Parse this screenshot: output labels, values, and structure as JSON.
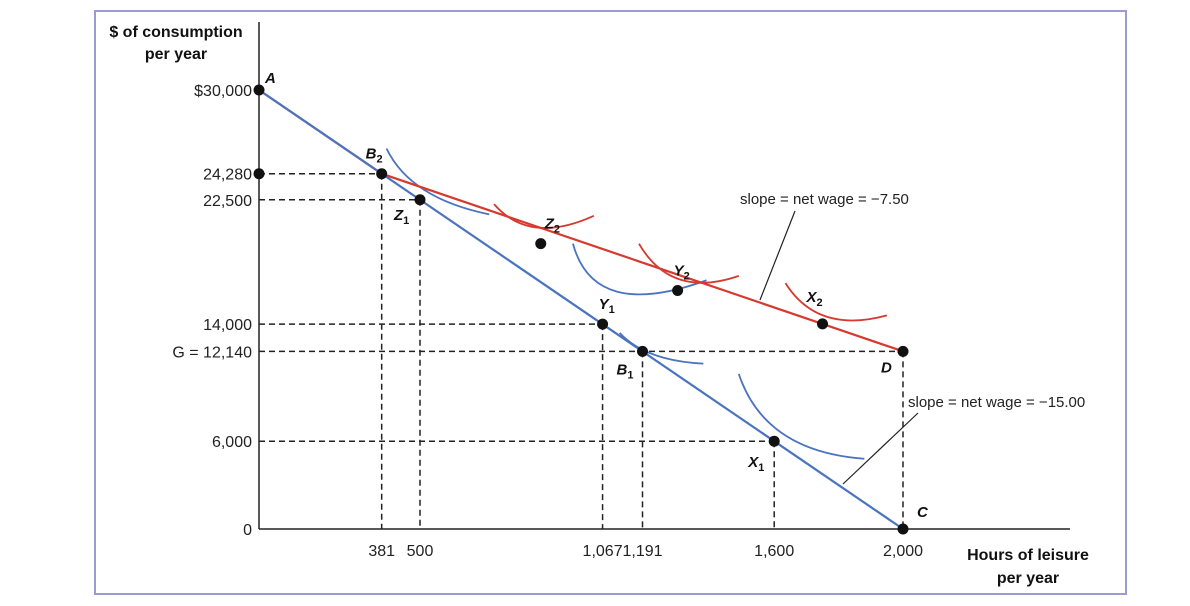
{
  "chart_data": {
    "type": "line",
    "title": "",
    "ylabel_line1": "$ of consumption",
    "ylabel_line2": "per year",
    "xlabel_line1": "Hours of leisure",
    "xlabel_line2": "per year",
    "xlim": [
      0,
      2000
    ],
    "ylim": [
      0,
      30000
    ],
    "x_ticks": [
      {
        "value": 381,
        "label": "381"
      },
      {
        "value": 500,
        "label": "500"
      },
      {
        "value": 1067,
        "label": "1,067"
      },
      {
        "value": 1191,
        "label": "1,191"
      },
      {
        "value": 1600,
        "label": "1,600"
      },
      {
        "value": 2000,
        "label": "2,000"
      }
    ],
    "y_ticks": [
      {
        "value": 30000,
        "label": "$30,000"
      },
      {
        "value": 24280,
        "label": "24,280"
      },
      {
        "value": 22500,
        "label": "22,500"
      },
      {
        "value": 14000,
        "label": "14,000"
      },
      {
        "value": 12140,
        "label": "G = 12,140"
      },
      {
        "value": 6000,
        "label": "6,000"
      },
      {
        "value": 0,
        "label": "0"
      }
    ],
    "series": [
      {
        "color": "#d63a2f",
        "points": [
          [
            0,
            30000
          ],
          [
            381,
            24280
          ],
          [
            2000,
            12140
          ]
        ]
      },
      {
        "color": "#4a74c0",
        "points": [
          [
            0,
            30000
          ],
          [
            2000,
            0
          ]
        ]
      }
    ],
    "points": [
      {
        "label": "A",
        "sub": "",
        "x": 0,
        "y": 30000
      },
      {
        "label": "B",
        "sub": "2",
        "x": 381,
        "y": 24280
      },
      {
        "label": "Z",
        "sub": "1",
        "x": 500,
        "y": 22500
      },
      {
        "label": "Z",
        "sub": "2",
        "x": 875,
        "y": 19500
      },
      {
        "label": "Y",
        "sub": "2",
        "x": 1300,
        "y": 16300
      },
      {
        "label": "Y",
        "sub": "1",
        "x": 1067,
        "y": 14000
      },
      {
        "label": "B",
        "sub": "1",
        "x": 1191,
        "y": 12140
      },
      {
        "label": "X",
        "sub": "2",
        "x": 1750,
        "y": 14020
      },
      {
        "label": "D",
        "sub": "",
        "x": 2000,
        "y": 12140
      },
      {
        "label": "X",
        "sub": "1",
        "x": 1600,
        "y": 6000
      },
      {
        "label": "C",
        "sub": "",
        "x": 2000,
        "y": 0
      }
    ],
    "annotations": [
      {
        "text": "slope = net wage = −7.50"
      },
      {
        "text": "slope = net wage = −15.00"
      }
    ],
    "colors": {
      "red_line": "#d63a2f",
      "blue_line": "#4a74c0",
      "frame": "#9b9bd0"
    }
  }
}
